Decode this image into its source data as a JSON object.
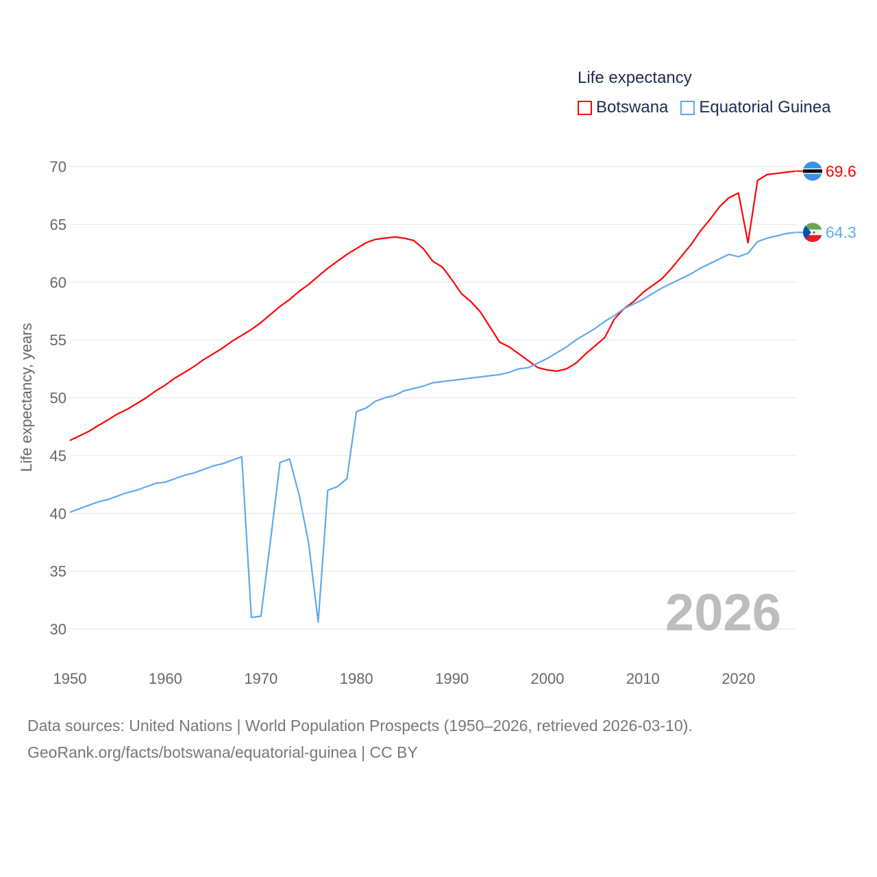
{
  "chart_data": {
    "type": "line",
    "legend_title": "Life expectancy",
    "legend_position": "top-right",
    "ylabel": "Life expectancy, years",
    "xlabel": "",
    "xlim": [
      1950,
      2026
    ],
    "ylim": [
      27,
      72
    ],
    "x_ticks": [
      "1950",
      "1960",
      "1970",
      "1980",
      "1990",
      "2000",
      "2010",
      "2020"
    ],
    "y_ticks": [
      "30",
      "35",
      "40",
      "45",
      "50",
      "55",
      "60",
      "65",
      "70"
    ],
    "grid": true,
    "year_watermark": "2026",
    "x": [
      1950,
      1951,
      1952,
      1953,
      1954,
      1955,
      1956,
      1957,
      1958,
      1959,
      1960,
      1961,
      1962,
      1963,
      1964,
      1965,
      1966,
      1967,
      1968,
      1969,
      1970,
      1971,
      1972,
      1973,
      1974,
      1975,
      1976,
      1977,
      1978,
      1979,
      1980,
      1981,
      1982,
      1983,
      1984,
      1985,
      1986,
      1987,
      1988,
      1989,
      1990,
      1991,
      1992,
      1993,
      1994,
      1995,
      1996,
      1997,
      1998,
      1999,
      2000,
      2001,
      2002,
      2003,
      2004,
      2005,
      2006,
      2007,
      2008,
      2009,
      2010,
      2011,
      2012,
      2013,
      2014,
      2015,
      2016,
      2017,
      2018,
      2019,
      2020,
      2021,
      2022,
      2023,
      2024,
      2025,
      2026
    ],
    "series": [
      {
        "name": "Botswana",
        "color": "#ff0000",
        "end_label": "69.6",
        "flag": "botswana-flag",
        "values": [
          46.3,
          46.7,
          47.1,
          47.6,
          48.1,
          48.6,
          49.0,
          49.5,
          50.0,
          50.6,
          51.1,
          51.7,
          52.2,
          52.7,
          53.3,
          53.8,
          54.3,
          54.9,
          55.4,
          55.9,
          56.5,
          57.2,
          57.9,
          58.5,
          59.2,
          59.8,
          60.5,
          61.2,
          61.8,
          62.4,
          62.9,
          63.4,
          63.7,
          63.8,
          63.9,
          63.8,
          63.6,
          62.9,
          61.8,
          61.3,
          60.2,
          59.0,
          58.3,
          57.4,
          56.1,
          54.8,
          54.4,
          53.8,
          53.2,
          52.6,
          52.4,
          52.3,
          52.5,
          53.0,
          53.8,
          54.5,
          55.2,
          56.8,
          57.7,
          58.3,
          59.1,
          59.7,
          60.3,
          61.2,
          62.2,
          63.2,
          64.4,
          65.4,
          66.5,
          67.3,
          67.7,
          63.4,
          68.8,
          69.3,
          69.4,
          69.5,
          69.6
        ]
      },
      {
        "name": "Equatorial Guinea",
        "color": "#5ea8ee",
        "end_label": "64.3",
        "flag": "equatorial-guinea-flag",
        "values": [
          40.1,
          40.4,
          40.7,
          41.0,
          41.2,
          41.5,
          41.8,
          42.0,
          42.3,
          42.6,
          42.7,
          43.0,
          43.3,
          43.5,
          43.8,
          44.1,
          44.3,
          44.6,
          44.9,
          31.0,
          31.1,
          37.6,
          44.4,
          44.7,
          41.6,
          37.4,
          30.6,
          42.0,
          42.3,
          43.0,
          48.8,
          49.1,
          49.7,
          50.0,
          50.2,
          50.6,
          50.8,
          51.0,
          51.3,
          51.4,
          51.5,
          51.6,
          51.7,
          51.8,
          51.9,
          52.0,
          52.2,
          52.5,
          52.6,
          53.0,
          53.4,
          53.9,
          54.4,
          55.0,
          55.5,
          56.0,
          56.6,
          57.1,
          57.7,
          58.1,
          58.5,
          59.0,
          59.5,
          59.9,
          60.3,
          60.7,
          61.2,
          61.6,
          62.0,
          62.4,
          62.2,
          62.5,
          63.5,
          63.8,
          64.0,
          64.2,
          64.3
        ]
      }
    ]
  },
  "footer": {
    "line1": "Data sources: United Nations | World Population Prospects (1950–2026, retrieved 2026-03-10).",
    "line2": "GeoRank.org/facts/botswana/equatorial-guinea | CC BY"
  }
}
